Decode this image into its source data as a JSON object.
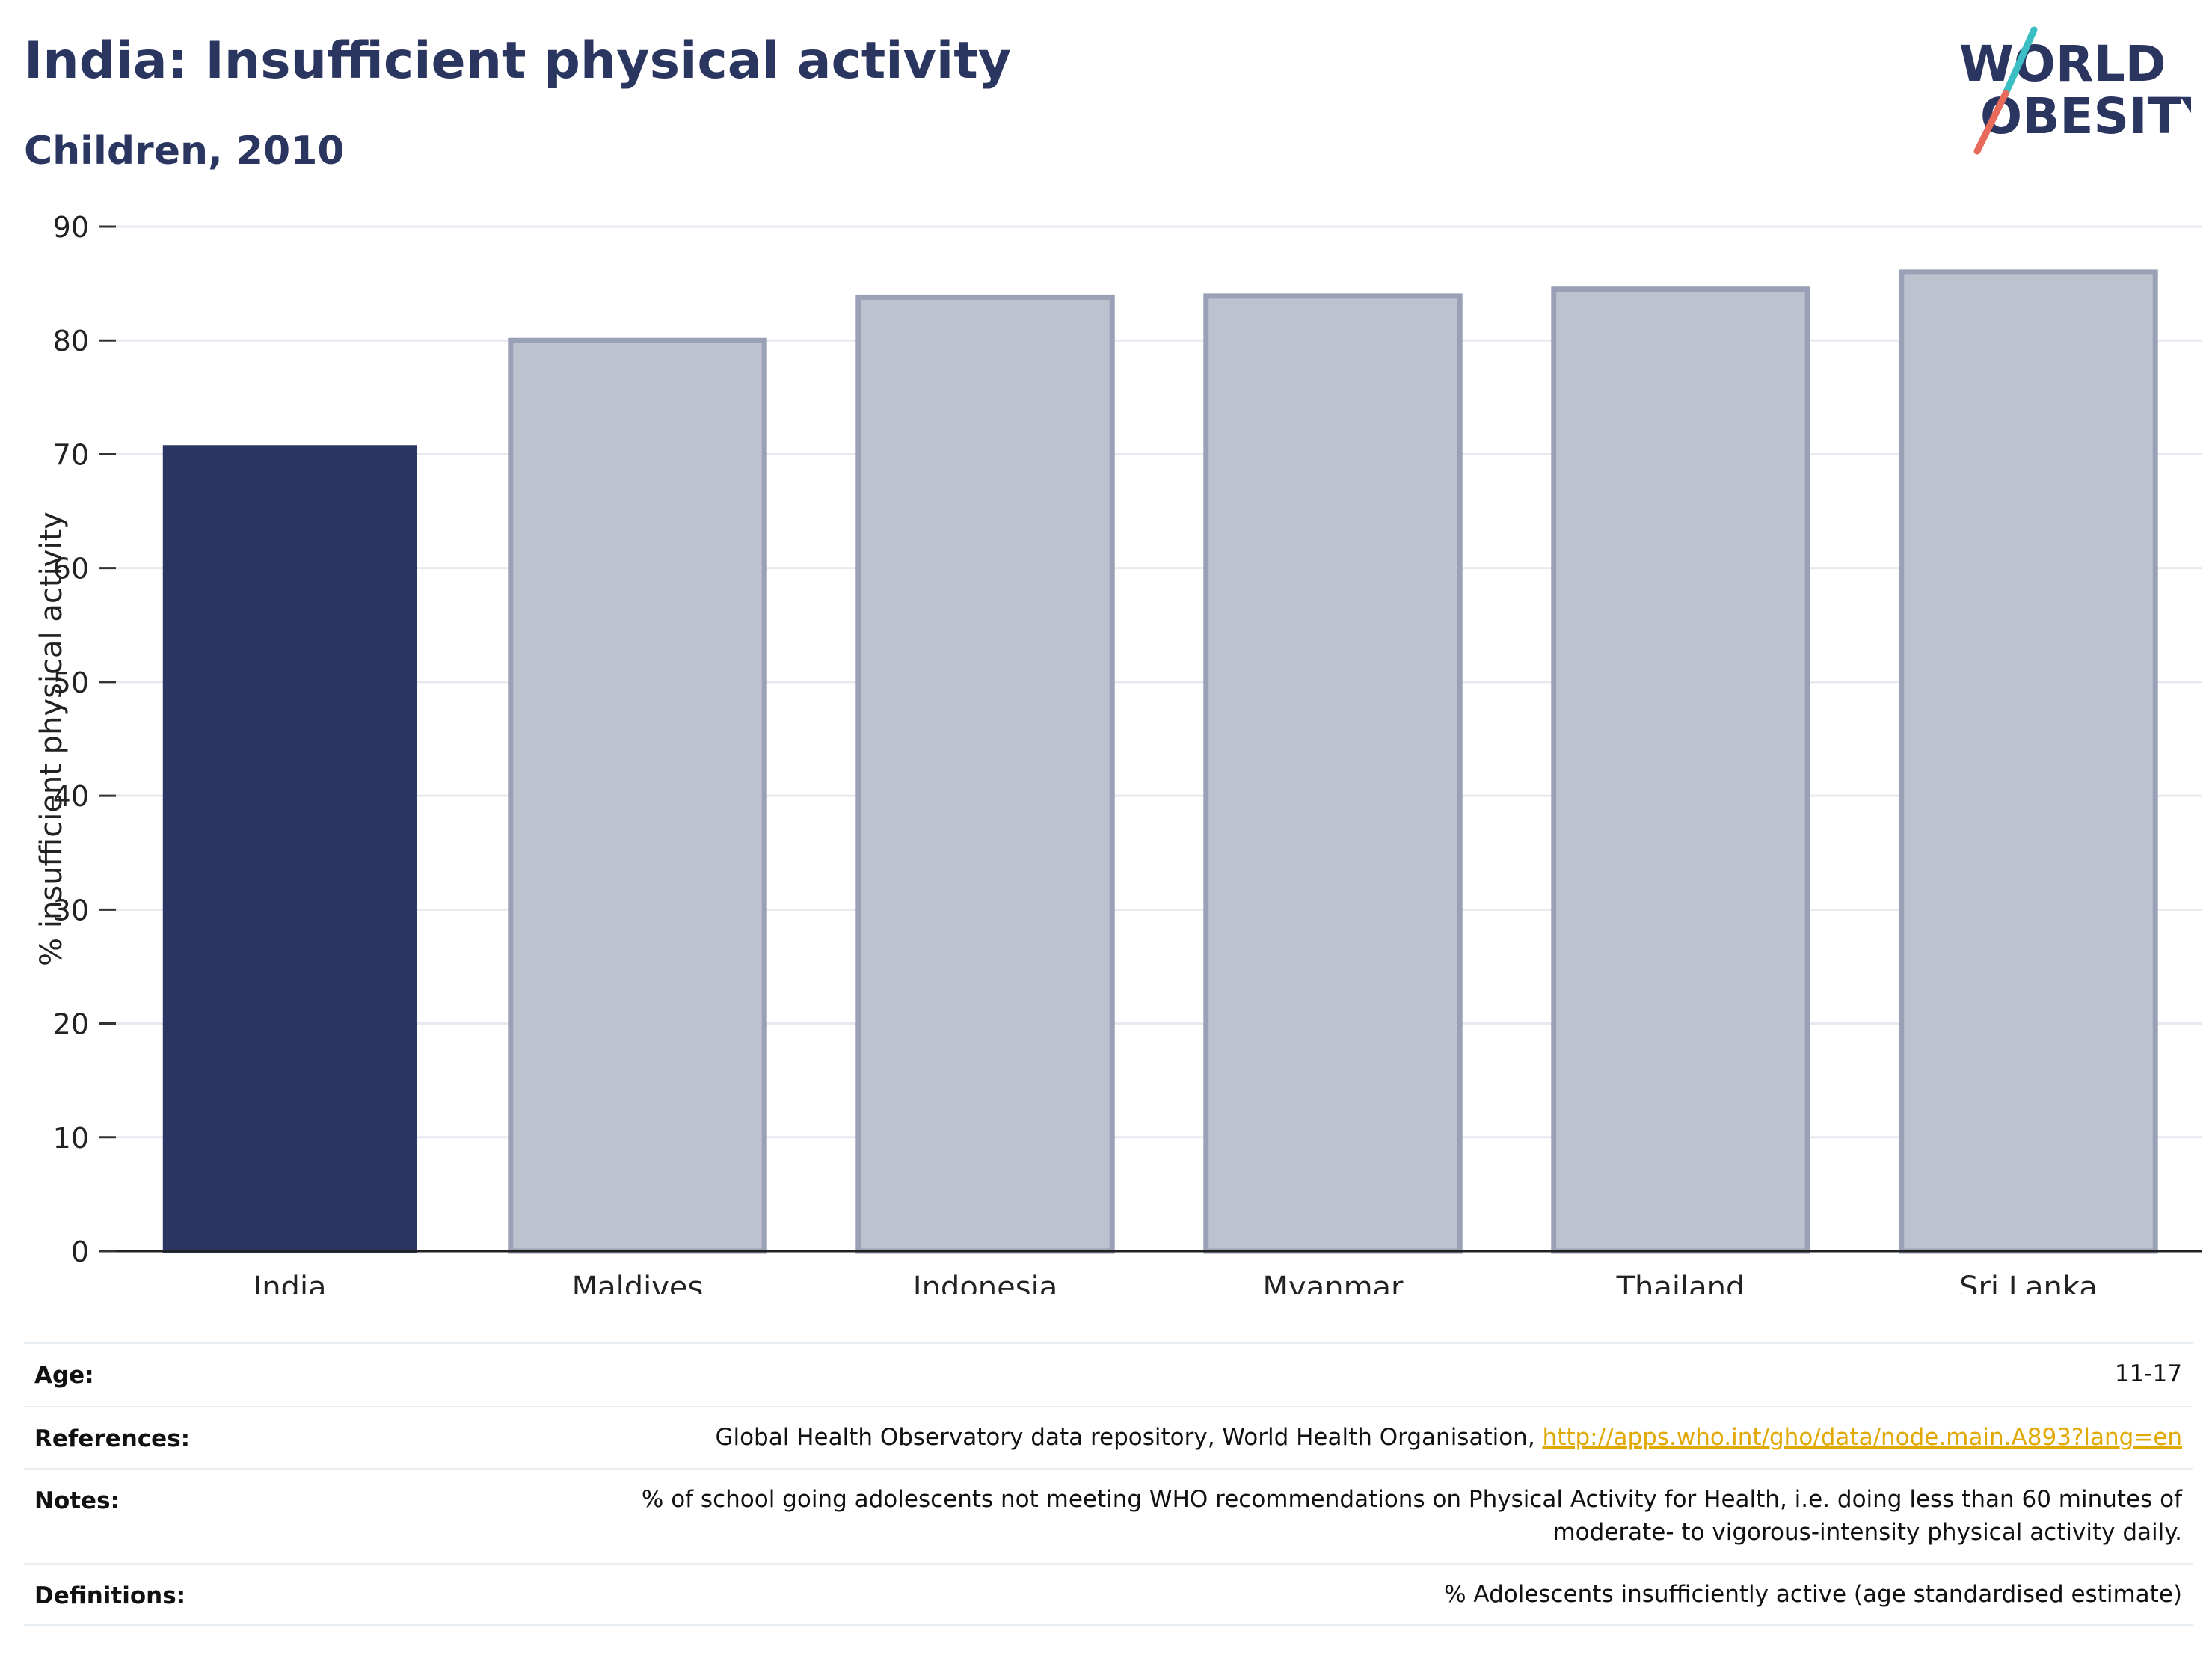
{
  "header": {
    "title": "India: Insufficient physical activity",
    "subtitle": "Children, 2010"
  },
  "logo": {
    "line1": "WORLD",
    "line2": "OBESITY",
    "accent_colors": [
      "#3bbfc4",
      "#e86a5a"
    ]
  },
  "colors": {
    "highlight": "#2b3561",
    "others_fill": "#bec2ce",
    "others_stroke": "#9aa1b6",
    "grid": "#e6e9ef"
  },
  "chart_data": {
    "type": "bar",
    "categories": [
      "India",
      "Maldives",
      "Indonesia",
      "Myanmar",
      "Thailand",
      "Sri Lanka"
    ],
    "values": [
      70.8,
      80.0,
      83.8,
      83.9,
      84.5,
      86.0
    ],
    "highlight": "India",
    "ylabel": "% insufficient physical activity",
    "ylim": [
      0,
      90
    ],
    "yticks": [
      0,
      10,
      20,
      30,
      40,
      50,
      60,
      70,
      80,
      90
    ],
    "grid": true
  },
  "meta": [
    {
      "label": "Age:",
      "value": "11-17"
    },
    {
      "label": "References:",
      "value": "Global Health Observatory data repository, World Health Organisation, ",
      "link": "http://apps.who.int/gho/data/node.main.A893?lang=en"
    },
    {
      "label": "Notes:",
      "value": "% of school going adolescents not meeting WHO recommendations on Physical Activity for Health, i.e. doing less than 60 minutes of moderate- to vigorous-intensity physical activity daily."
    },
    {
      "label": "Definitions:",
      "value": "% Adolescents insufficiently active (age standardised estimate)"
    }
  ]
}
